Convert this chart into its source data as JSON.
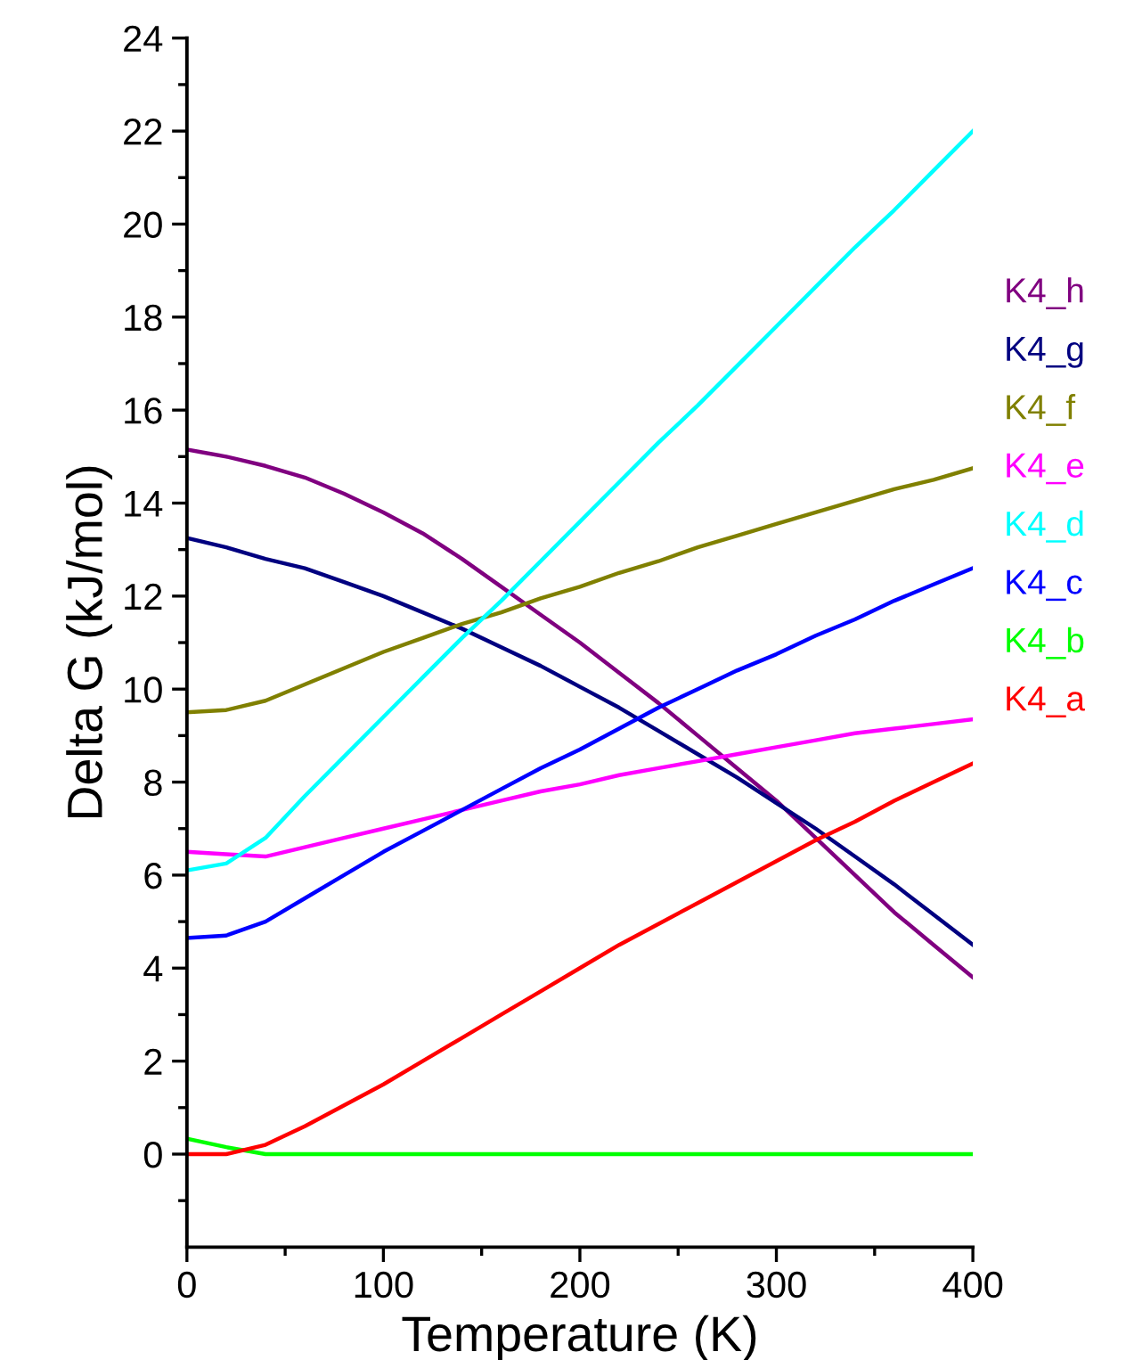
{
  "chart_data": {
    "type": "line",
    "xlabel": "Temperature (K)",
    "ylabel": "Delta G (kJ/mol)",
    "xlim": [
      0,
      400
    ],
    "ylim": [
      -2,
      24
    ],
    "xticks": [
      0,
      {
        "value": 50,
        "label": null
      },
      100,
      {
        "value": 150,
        "label": null
      },
      200,
      {
        "value": 250,
        "label": null
      },
      300,
      {
        "value": 350,
        "label": null
      },
      400
    ],
    "yticks": [
      {
        "value": -1,
        "label": null
      },
      0,
      {
        "value": 1,
        "label": null
      },
      2,
      {
        "value": 3,
        "label": null
      },
      4,
      {
        "value": 5,
        "label": null
      },
      6,
      {
        "value": 7,
        "label": null
      },
      8,
      {
        "value": 9,
        "label": null
      },
      10,
      {
        "value": 11,
        "label": null
      },
      12,
      {
        "value": 13,
        "label": null
      },
      14,
      {
        "value": 15,
        "label": null
      },
      16,
      {
        "value": 17,
        "label": null
      },
      18,
      {
        "value": 19,
        "label": null
      },
      20,
      {
        "value": 21,
        "label": null
      },
      22,
      {
        "value": 23,
        "label": null
      },
      24
    ],
    "grid": false,
    "legend": "right",
    "marker": "none",
    "line_style": "solid",
    "x": [
      0,
      20,
      40,
      60,
      80,
      100,
      120,
      140,
      160,
      180,
      200,
      220,
      240,
      260,
      280,
      300,
      320,
      340,
      360,
      380,
      400
    ],
    "series": [
      {
        "name": "K4_h",
        "color": "#800080",
        "values": [
          15.15,
          15.0,
          14.8,
          14.55,
          14.2,
          13.8,
          13.35,
          12.8,
          12.2,
          11.6,
          11.0,
          10.35,
          9.7,
          9.0,
          8.3,
          7.6,
          6.8,
          6.0,
          5.2,
          4.5,
          3.8
        ]
      },
      {
        "name": "K4_g",
        "color": "#000080",
        "values": [
          13.25,
          13.05,
          12.8,
          12.6,
          12.3,
          12.0,
          11.65,
          11.3,
          10.9,
          10.5,
          10.05,
          9.6,
          9.1,
          8.6,
          8.1,
          7.55,
          7.0,
          6.4,
          5.8,
          5.15,
          4.5
        ]
      },
      {
        "name": "K4_f",
        "color": "#808000",
        "values": [
          9.5,
          9.55,
          9.75,
          10.1,
          10.45,
          10.8,
          11.1,
          11.4,
          11.65,
          11.95,
          12.2,
          12.5,
          12.75,
          13.05,
          13.3,
          13.55,
          13.8,
          14.05,
          14.3,
          14.5,
          14.75
        ]
      },
      {
        "name": "K4_e",
        "color": "#ff00ff",
        "values": [
          6.5,
          6.45,
          6.4,
          6.6,
          6.8,
          7.0,
          7.2,
          7.4,
          7.6,
          7.8,
          7.95,
          8.15,
          8.3,
          8.45,
          8.6,
          8.75,
          8.9,
          9.05,
          9.15,
          9.25,
          9.35
        ]
      },
      {
        "name": "K4_d",
        "color": "#00ffff",
        "values": [
          6.1,
          6.25,
          6.8,
          7.7,
          8.55,
          9.4,
          10.25,
          11.1,
          11.9,
          12.75,
          13.6,
          14.45,
          15.3,
          16.1,
          16.95,
          17.8,
          18.65,
          19.5,
          20.3,
          21.15,
          22.0
        ]
      },
      {
        "name": "K4_c",
        "color": "#0000ff",
        "values": [
          4.65,
          4.7,
          5.0,
          5.5,
          6.0,
          6.5,
          6.95,
          7.4,
          7.85,
          8.3,
          8.7,
          9.15,
          9.6,
          10.0,
          10.4,
          10.75,
          11.15,
          11.5,
          11.9,
          12.25,
          12.6
        ]
      },
      {
        "name": "K4_b",
        "color": "#00ff00",
        "values": [
          0.33,
          0.15,
          0,
          0,
          0,
          0,
          0,
          0,
          0,
          0,
          0,
          0,
          0,
          0,
          0,
          0,
          0,
          0,
          0,
          0,
          0
        ]
      },
      {
        "name": "K4_a",
        "color": "#ff0000",
        "values": [
          0,
          0,
          0.2,
          0.6,
          1.05,
          1.5,
          2.0,
          2.5,
          3.0,
          3.5,
          4.0,
          4.5,
          4.95,
          5.4,
          5.85,
          6.3,
          6.75,
          7.15,
          7.6,
          8.0,
          8.4
        ]
      }
    ]
  }
}
